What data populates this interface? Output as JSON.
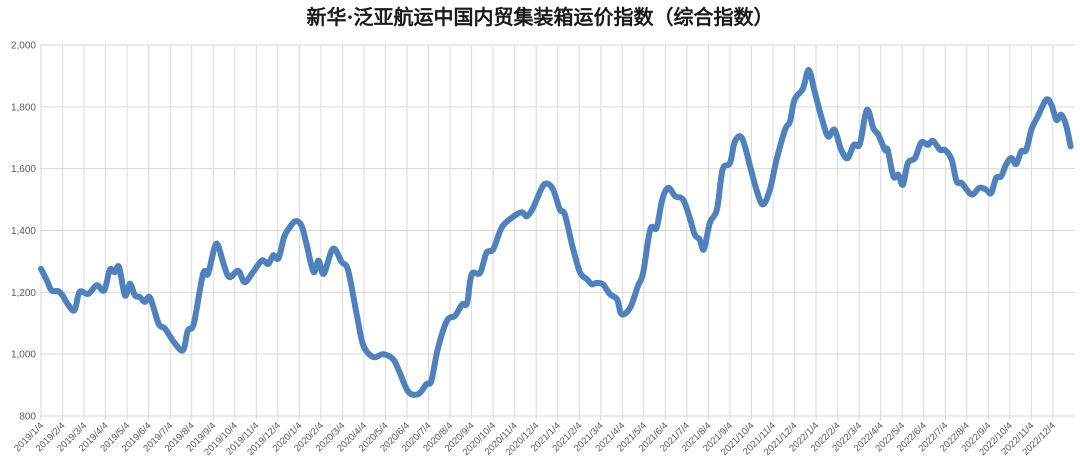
{
  "chart_data": {
    "type": "line",
    "title": "新华·泛亚航运中国内贸集装箱运价指数（综合指数）",
    "xlabel": "",
    "ylabel": "",
    "ylim": [
      800,
      2000
    ],
    "y_ticks": [
      "800",
      "1,000",
      "1,200",
      "1,400",
      "1,600",
      "1,800",
      "2,000"
    ],
    "y_tick_values": [
      800,
      1000,
      1200,
      1400,
      1600,
      1800,
      2000
    ],
    "x_ticks": [
      "2019/1/4",
      "2019/2/4",
      "2019/3/4",
      "2019/4/4",
      "2019/5/4",
      "2019/6/4",
      "2019/7/4",
      "2019/8/4",
      "2019/9/4",
      "2019/10/4",
      "2019/11/4",
      "2019/12/4",
      "2020/1/4",
      "2020/2/4",
      "2020/3/4",
      "2020/4/4",
      "2020/5/4",
      "2020/6/4",
      "2020/7/4",
      "2020/8/4",
      "2020/9/4",
      "2020/10/4",
      "2020/11/4",
      "2020/12/4",
      "2021/1/4",
      "2021/2/4",
      "2021/3/4",
      "2021/4/4",
      "2021/5/4",
      "2021/6/4",
      "2021/7/4",
      "2021/8/4",
      "2021/9/4",
      "2021/10/4",
      "2021/11/4",
      "2021/12/4",
      "2022/1/4",
      "2022/2/4",
      "2022/3/4",
      "2022/4/4",
      "2022/5/4",
      "2022/6/4",
      "2022/7/4",
      "2022/8/4",
      "2022/9/4",
      "2022/10/4",
      "2022/11/4",
      "2022/12/4"
    ],
    "grid": true,
    "legend": "none",
    "colors": {
      "line": "#4f81bd",
      "grid": "#d9d9d9"
    },
    "series": [
      {
        "x": [
          "2019/1/4",
          "2019/1/12",
          "2019/1/19",
          "2019/1/28",
          "2019/2/4",
          "2019/2/12",
          "2019/2/21",
          "2019/2/28",
          "2019/3/10",
          "2019/3/22",
          "2019/4/2",
          "2019/4/10",
          "2019/4/17",
          "2019/4/23",
          "2019/5/1",
          "2019/5/8",
          "2019/5/15",
          "2019/5/22",
          "2019/5/29",
          "2019/6/6",
          "2019/6/18",
          "2019/6/27",
          "2019/7/9",
          "2019/7/22",
          "2019/7/29",
          "2019/8/7",
          "2019/8/20",
          "2019/8/27",
          "2019/9/6",
          "2019/9/11",
          "2019/9/20",
          "2019/9/27",
          "2019/10/9",
          "2019/10/18",
          "2019/10/30",
          "2019/11/12",
          "2019/11/21",
          "2019/11/28",
          "2019/12/5",
          "2019/12/13",
          "2019/12/21",
          "2019/12/29",
          "2020/1/7",
          "2020/1/14",
          "2020/1/24",
          "2020/1/31",
          "2020/2/8",
          "2020/2/21",
          "2020/3/3",
          "2020/3/12",
          "2020/3/24",
          "2020/4/3",
          "2020/4/17",
          "2020/5/1",
          "2020/5/15",
          "2020/5/24",
          "2020/6/6",
          "2020/6/20",
          "2020/7/1",
          "2020/7/8",
          "2020/7/17",
          "2020/7/30",
          "2020/8/11",
          "2020/8/21",
          "2020/8/28",
          "2020/9/4",
          "2020/9/16",
          "2020/9/25",
          "2020/10/4",
          "2020/10/16",
          "2020/10/30",
          "2020/11/14",
          "2020/11/21",
          "2020/11/30",
          "2020/12/12",
          "2020/12/19",
          "2020/12/28",
          "2021/1/7",
          "2021/1/14",
          "2021/1/25",
          "2021/2/5",
          "2021/2/15",
          "2021/2/22",
          "2021/2/28",
          "2021/3/7",
          "2021/3/17",
          "2021/3/27",
          "2021/4/3",
          "2021/4/15",
          "2021/4/26",
          "2021/5/3",
          "2021/5/13",
          "2021/5/22",
          "2021/5/30",
          "2021/6/8",
          "2021/6/18",
          "2021/6/29",
          "2021/7/8",
          "2021/7/15",
          "2021/7/22",
          "2021/7/28",
          "2021/8/6",
          "2021/8/16",
          "2021/8/24",
          "2021/9/4",
          "2021/9/11",
          "2021/9/21",
          "2021/10/2",
          "2021/10/11",
          "2021/10/20",
          "2021/10/30",
          "2021/11/9",
          "2021/11/21",
          "2021/11/28",
          "2021/12/4",
          "2021/12/16",
          "2021/12/24",
          "2022/1/2",
          "2022/1/12",
          "2022/1/21",
          "2022/1/30",
          "2022/2/9",
          "2022/2/18",
          "2022/2/27",
          "2022/3/5",
          "2022/3/15",
          "2022/3/24",
          "2022/3/31",
          "2022/4/10",
          "2022/4/14",
          "2022/4/22",
          "2022/4/29",
          "2022/5/5",
          "2022/5/12",
          "2022/5/22",
          "2022/5/31",
          "2022/6/10",
          "2022/6/17",
          "2022/6/27",
          "2022/7/4",
          "2022/7/13",
          "2022/7/20",
          "2022/7/27",
          "2022/8/4",
          "2022/8/12",
          "2022/8/22",
          "2022/9/1",
          "2022/9/8",
          "2022/9/15",
          "2022/9/22",
          "2022/9/29",
          "2022/10/6",
          "2022/10/13",
          "2022/10/20",
          "2022/10/27",
          "2022/11/4",
          "2022/11/13",
          "2022/11/25",
          "2022/12/2",
          "2022/12/9",
          "2022/12/16",
          "2022/12/23",
          "2022/12/29"
        ],
        "values": [
          1276,
          1240,
          1206,
          1204,
          1190,
          1160,
          1142,
          1201,
          1195,
          1223,
          1206,
          1273,
          1265,
          1282,
          1190,
          1228,
          1190,
          1185,
          1169,
          1183,
          1099,
          1083,
          1040,
          1013,
          1077,
          1099,
          1260,
          1260,
          1346,
          1350,
          1282,
          1249,
          1269,
          1233,
          1266,
          1303,
          1292,
          1320,
          1310,
          1380,
          1411,
          1430,
          1416,
          1357,
          1266,
          1303,
          1260,
          1341,
          1298,
          1271,
          1131,
          1029,
          991,
          1000,
          983,
          941,
          878,
          871,
          903,
          914,
          1016,
          1108,
          1124,
          1161,
          1165,
          1258,
          1263,
          1328,
          1339,
          1409,
          1441,
          1459,
          1446,
          1473,
          1538,
          1552,
          1532,
          1468,
          1452,
          1347,
          1265,
          1242,
          1226,
          1230,
          1226,
          1194,
          1177,
          1129,
          1150,
          1220,
          1263,
          1403,
          1409,
          1500,
          1538,
          1511,
          1500,
          1441,
          1387,
          1371,
          1339,
          1425,
          1468,
          1597,
          1618,
          1688,
          1699,
          1608,
          1532,
          1484,
          1532,
          1629,
          1726,
          1753,
          1823,
          1860,
          1919,
          1849,
          1763,
          1704,
          1726,
          1661,
          1634,
          1677,
          1680,
          1790,
          1731,
          1710,
          1661,
          1660,
          1575,
          1580,
          1548,
          1618,
          1634,
          1685,
          1677,
          1690,
          1661,
          1660,
          1629,
          1559,
          1554,
          1532,
          1516,
          1538,
          1532,
          1521,
          1570,
          1575,
          1613,
          1634,
          1615,
          1656,
          1660,
          1726,
          1769,
          1823,
          1806,
          1758,
          1774,
          1737,
          1672
        ]
      }
    ]
  }
}
